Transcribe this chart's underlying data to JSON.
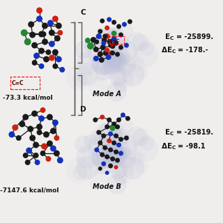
{
  "background_color": "#f0eeec",
  "label_C": "C",
  "label_D": "D",
  "mode_a_label": "Mode A",
  "mode_b_label": "Mode B",
  "ec_a_text": "E",
  "ec_a_val": " = -25899.",
  "delta_ec_a_val": " = -178.-",
  "ec_b_val": " = -25819.",
  "delta_ec_b_val": " = -98.1",
  "kcal_a": "-73.3 kcal/mol",
  "kcal_b": "-7147.6 kcal/mol",
  "bracket_color": "#555555",
  "atom_dark": "#1a1a1a",
  "atom_blue": "#1133bb",
  "atom_red": "#cc2211",
  "atom_green": "#228833",
  "atom_pink": "#dd6688"
}
